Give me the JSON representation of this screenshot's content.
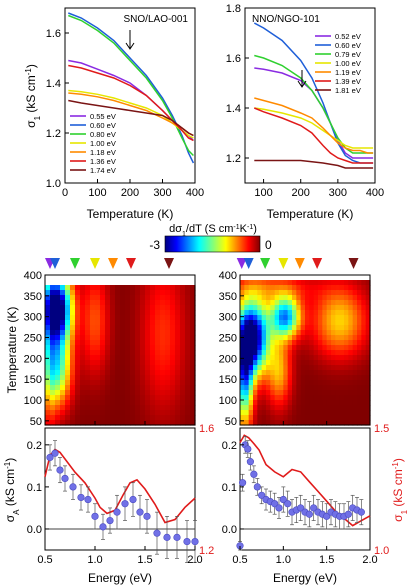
{
  "colors": {
    "violet": "#8a2be2",
    "blue": "#1f5fd8",
    "green": "#2fd02f",
    "yellow": "#e6e600",
    "orange": "#ff8a00",
    "red": "#e01b1b",
    "darkred": "#7a1414",
    "axis": "#000000",
    "model": "#e01b1b",
    "exp_points": "#7070e6"
  },
  "chart_data": [
    {
      "type": "line",
      "title": "SNO/LAO-001",
      "xlabel": "Temperature (K)",
      "ylabel": "σ1 (kS cm-1)",
      "xlim": [
        0,
        400
      ],
      "ylim": [
        1.0,
        1.7
      ],
      "xticks": [
        0,
        100,
        200,
        300,
        400
      ],
      "yticks": [
        "1.0",
        "1.2",
        "1.4",
        "1.6"
      ],
      "legend": "bottom-left",
      "annotation": "downward arrow at 200 K",
      "series": [
        {
          "name": "0.55 eV",
          "color": "violet",
          "x": [
            10,
            50,
            100,
            150,
            200,
            250,
            300,
            330,
            360,
            380,
            395
          ],
          "y": [
            1.49,
            1.48,
            1.455,
            1.43,
            1.4,
            1.35,
            1.29,
            1.25,
            1.21,
            1.19,
            1.17
          ]
        },
        {
          "name": "0.60 eV",
          "color": "blue",
          "x": [
            10,
            50,
            100,
            150,
            200,
            250,
            300,
            330,
            360,
            380,
            395
          ],
          "y": [
            1.68,
            1.66,
            1.62,
            1.57,
            1.5,
            1.43,
            1.34,
            1.27,
            1.19,
            1.12,
            1.08
          ]
        },
        {
          "name": "0.80 eV",
          "color": "green",
          "x": [
            10,
            50,
            100,
            150,
            200,
            250,
            300,
            330,
            360,
            380,
            395
          ],
          "y": [
            1.67,
            1.65,
            1.61,
            1.56,
            1.49,
            1.42,
            1.33,
            1.26,
            1.18,
            1.13,
            1.11
          ]
        },
        {
          "name": "1.00 eV",
          "color": "yellow",
          "x": [
            10,
            50,
            100,
            150,
            200,
            250,
            300,
            330,
            360,
            380,
            395
          ],
          "y": [
            1.37,
            1.365,
            1.355,
            1.34,
            1.32,
            1.3,
            1.27,
            1.24,
            1.21,
            1.19,
            1.18
          ]
        },
        {
          "name": "1.18 eV",
          "color": "orange",
          "x": [
            10,
            50,
            100,
            150,
            200,
            250,
            300,
            330,
            360,
            380,
            395
          ],
          "y": [
            1.36,
            1.355,
            1.345,
            1.33,
            1.31,
            1.29,
            1.26,
            1.24,
            1.22,
            1.2,
            1.19
          ]
        },
        {
          "name": "1.36 eV",
          "color": "red",
          "x": [
            10,
            50,
            100,
            150,
            200,
            250,
            300,
            330,
            360,
            380,
            395
          ],
          "y": [
            1.47,
            1.46,
            1.44,
            1.42,
            1.39,
            1.35,
            1.29,
            1.25,
            1.21,
            1.18,
            1.17
          ]
        },
        {
          "name": "1.74 eV",
          "color": "darkred",
          "x": [
            10,
            50,
            100,
            150,
            200,
            250,
            300,
            330,
            360,
            380,
            395
          ],
          "y": [
            1.33,
            1.32,
            1.31,
            1.3,
            1.29,
            1.28,
            1.27,
            1.25,
            1.22,
            1.2,
            1.19
          ]
        }
      ]
    },
    {
      "type": "line",
      "title": "NNO/NGO-101",
      "xlabel": "Temperature (K)",
      "ylabel": "",
      "xlim": [
        50,
        400
      ],
      "ylim": [
        1.1,
        1.8
      ],
      "xticks": [
        100,
        200,
        300,
        400
      ],
      "yticks": [
        "1.2",
        "1.4",
        "1.6",
        "1.8"
      ],
      "legend": "top-right",
      "annotation": "downward arrow at 225 K",
      "series": [
        {
          "name": "0.52 eV",
          "color": "violet",
          "x": [
            75,
            100,
            150,
            200,
            230,
            260,
            280,
            300,
            320,
            340,
            360,
            380,
            395
          ],
          "y": [
            1.56,
            1.555,
            1.54,
            1.51,
            1.47,
            1.4,
            1.34,
            1.27,
            1.22,
            1.2,
            1.2,
            1.2,
            1.2
          ]
        },
        {
          "name": "0.60 eV",
          "color": "blue",
          "x": [
            75,
            100,
            150,
            200,
            230,
            260,
            280,
            300,
            320,
            340,
            360,
            380,
            395
          ],
          "y": [
            1.74,
            1.72,
            1.67,
            1.59,
            1.52,
            1.42,
            1.34,
            1.26,
            1.21,
            1.19,
            1.18,
            1.18,
            1.18
          ]
        },
        {
          "name": "0.79 eV",
          "color": "green",
          "x": [
            75,
            100,
            150,
            200,
            230,
            260,
            280,
            300,
            320,
            340,
            360,
            380,
            395
          ],
          "y": [
            1.61,
            1.6,
            1.57,
            1.52,
            1.47,
            1.4,
            1.34,
            1.28,
            1.24,
            1.22,
            1.22,
            1.22,
            1.22
          ]
        },
        {
          "name": "1.00 eV",
          "color": "yellow",
          "x": [
            75,
            100,
            150,
            200,
            230,
            260,
            280,
            300,
            320,
            340,
            360,
            380,
            395
          ],
          "y": [
            1.4,
            1.395,
            1.38,
            1.36,
            1.34,
            1.31,
            1.29,
            1.27,
            1.25,
            1.24,
            1.24,
            1.24,
            1.24
          ]
        },
        {
          "name": "1.19 eV",
          "color": "orange",
          "x": [
            75,
            100,
            150,
            200,
            230,
            260,
            280,
            300,
            320,
            340,
            360,
            380,
            395
          ],
          "y": [
            1.44,
            1.43,
            1.41,
            1.38,
            1.36,
            1.32,
            1.29,
            1.26,
            1.24,
            1.23,
            1.23,
            1.22,
            1.22
          ]
        },
        {
          "name": "1.39 eV",
          "color": "red",
          "x": [
            75,
            100,
            150,
            200,
            230,
            260,
            280,
            300,
            320,
            340,
            360,
            380,
            395
          ],
          "y": [
            1.4,
            1.385,
            1.36,
            1.33,
            1.3,
            1.25,
            1.22,
            1.2,
            1.19,
            1.18,
            1.18,
            1.18,
            1.18
          ]
        },
        {
          "name": "1.81 eV",
          "color": "darkred",
          "x": [
            75,
            100,
            150,
            200,
            230,
            260,
            280,
            300,
            320,
            340,
            360,
            380,
            395
          ],
          "y": [
            1.19,
            1.19,
            1.19,
            1.19,
            1.185,
            1.18,
            1.175,
            1.17,
            1.16,
            1.16,
            1.16,
            1.16,
            1.16
          ]
        }
      ]
    },
    {
      "type": "heatmap",
      "title": "",
      "xlabel": "",
      "ylabel": "Temperature (K)",
      "xlim": [
        0.5,
        2.0
      ],
      "ylim": [
        40,
        400
      ],
      "yticks": [
        50,
        100,
        150,
        200,
        250,
        300,
        350,
        400
      ],
      "value_range": [
        -3,
        0
      ],
      "markers_eV": [
        0.55,
        0.6,
        0.8,
        1.0,
        1.18,
        1.36,
        1.74
      ],
      "blobs": [
        {
          "e": 0.62,
          "t": 320,
          "se": 0.1,
          "st": 55,
          "a": 3.4
        },
        {
          "e": 0.62,
          "t": 180,
          "se": 0.1,
          "st": 65,
          "a": 1.7
        },
        {
          "e": 0.54,
          "t": 250,
          "se": 0.05,
          "st": 150,
          "a": 0.6
        },
        {
          "e": 1.0,
          "t": 290,
          "se": 0.1,
          "st": 90,
          "a": 0.6
        },
        {
          "e": 1.68,
          "t": 260,
          "se": 0.16,
          "st": 130,
          "a": 0.5
        }
      ]
    },
    {
      "type": "heatmap",
      "title": "",
      "xlabel": "",
      "ylabel": "",
      "xlim": [
        0.5,
        2.0
      ],
      "ylim": [
        40,
        400
      ],
      "yticks": [
        50,
        100,
        150,
        200,
        250,
        300,
        350,
        400
      ],
      "value_range": [
        -3,
        0
      ],
      "markers_eV": [
        0.52,
        0.6,
        0.79,
        1.0,
        1.19,
        1.39,
        1.81
      ],
      "blobs": [
        {
          "e": 0.64,
          "t": 250,
          "se": 0.13,
          "st": 60,
          "a": 3.3
        },
        {
          "e": 0.55,
          "t": 150,
          "se": 0.07,
          "st": 80,
          "a": 2.0
        },
        {
          "e": 1.02,
          "t": 300,
          "se": 0.12,
          "st": 35,
          "a": 2.2
        },
        {
          "e": 0.95,
          "t": 170,
          "se": 0.1,
          "st": 60,
          "a": 0.9
        },
        {
          "e": 1.65,
          "t": 290,
          "se": 0.22,
          "st": 60,
          "a": 1.0
        },
        {
          "e": 0.85,
          "t": 370,
          "se": 0.35,
          "st": 25,
          "a": 0.5
        }
      ]
    },
    {
      "type": "scatter",
      "title": "",
      "xlabel": "Energy (eV)",
      "ylabel": "σA (kS cm-1)",
      "y2label": "",
      "xlim": [
        0.5,
        2.0
      ],
      "ylim": [
        -0.05,
        0.24
      ],
      "y2lim": [
        1.2,
        1.6
      ],
      "xticks": [
        "0.5",
        "1.0",
        "1.5",
        "2.0"
      ],
      "yticks": [
        "0.0",
        "0.1",
        "0.2"
      ],
      "y2ticks": [
        "1.2",
        "1.6"
      ],
      "points": {
        "x": [
          0.55,
          0.6,
          0.65,
          0.7,
          0.78,
          0.86,
          0.93,
          1.0,
          1.08,
          1.15,
          1.22,
          1.3,
          1.38,
          1.45,
          1.52,
          1.62,
          1.72,
          1.82,
          1.92,
          2.0
        ],
        "y": [
          0.17,
          0.18,
          0.14,
          0.12,
          0.1,
          0.075,
          0.07,
          0.03,
          0.005,
          0.02,
          0.04,
          0.06,
          0.07,
          0.04,
          0.03,
          -0.01,
          -0.02,
          -0.02,
          -0.03,
          -0.03
        ],
        "err": [
          0.03,
          0.03,
          0.03,
          0.03,
          0.03,
          0.03,
          0.03,
          0.03,
          0.03,
          0.03,
          0.04,
          0.04,
          0.04,
          0.04,
          0.04,
          0.05,
          0.05,
          0.05,
          0.05,
          0.05
        ]
      },
      "model_curve": {
        "x": [
          0.5,
          0.55,
          0.6,
          0.65,
          0.72,
          0.8,
          0.9,
          1.0,
          1.05,
          1.12,
          1.2,
          1.28,
          1.35,
          1.42,
          1.5,
          1.6,
          1.7,
          1.8,
          1.9,
          2.0
        ],
        "y": [
          1.44,
          1.51,
          1.53,
          1.52,
          1.49,
          1.455,
          1.42,
          1.37,
          1.34,
          1.32,
          1.33,
          1.38,
          1.42,
          1.43,
          1.4,
          1.35,
          1.29,
          1.3,
          1.34,
          1.37
        ]
      }
    },
    {
      "type": "scatter",
      "title": "",
      "xlabel": "Energy (eV)",
      "ylabel": "",
      "y2label": "σ1 (kS cm-1)",
      "xlim": [
        0.5,
        2.0
      ],
      "ylim": [
        -0.05,
        0.24
      ],
      "y2lim": [
        1.0,
        1.5
      ],
      "xticks": [
        "0.5",
        "1.0",
        "1.5",
        "2.0"
      ],
      "yticks": [
        "0.0",
        "0.1",
        "0.2"
      ],
      "y2ticks": [
        "1.0",
        "1.5"
      ],
      "points": {
        "x": [
          0.5,
          0.53,
          0.56,
          0.59,
          0.62,
          0.66,
          0.7,
          0.75,
          0.8,
          0.85,
          0.9,
          0.95,
          1.0,
          1.05,
          1.1,
          1.15,
          1.2,
          1.25,
          1.3,
          1.35,
          1.4,
          1.45,
          1.5,
          1.55,
          1.6,
          1.65,
          1.7,
          1.75,
          1.8,
          1.85,
          1.9
        ],
        "y": [
          -0.04,
          0.11,
          0.2,
          0.19,
          0.16,
          0.13,
          0.1,
          0.08,
          0.07,
          0.065,
          0.06,
          0.05,
          0.07,
          0.06,
          0.04,
          0.045,
          0.05,
          0.04,
          0.035,
          0.05,
          0.04,
          0.035,
          0.03,
          0.04,
          0.035,
          0.03,
          0.03,
          0.035,
          0.05,
          0.045,
          0.04
        ],
        "err": [
          0.01,
          0.02,
          0.02,
          0.02,
          0.02,
          0.02,
          0.02,
          0.02,
          0.025,
          0.025,
          0.025,
          0.025,
          0.03,
          0.03,
          0.03,
          0.03,
          0.03,
          0.03,
          0.03,
          0.03,
          0.03,
          0.03,
          0.03,
          0.03,
          0.03,
          0.03,
          0.03,
          0.03,
          0.03,
          0.03,
          0.03
        ]
      },
      "model_curve": {
        "x": [
          0.5,
          0.55,
          0.6,
          0.65,
          0.72,
          0.8,
          0.9,
          1.0,
          1.1,
          1.2,
          1.3,
          1.4,
          1.5,
          1.6,
          1.7,
          1.8,
          1.9,
          2.0
        ],
        "y": [
          1.44,
          1.47,
          1.46,
          1.44,
          1.41,
          1.35,
          1.32,
          1.3,
          1.33,
          1.32,
          1.28,
          1.24,
          1.2,
          1.16,
          1.13,
          1.1,
          1.12,
          1.14
        ]
      }
    }
  ],
  "colorbar": {
    "label": "dσ1/dT (S cm-1K-1)",
    "min_label": "-3",
    "max_label": "0"
  }
}
